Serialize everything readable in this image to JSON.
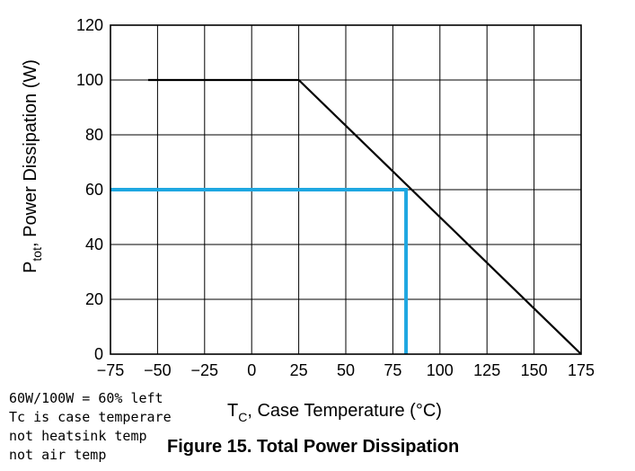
{
  "chart_data": {
    "type": "line",
    "title": "Figure 15. Total Power Dissipation",
    "xlabel": {
      "main": "T",
      "sub": "C",
      "rest": ", Case Temperature (°C)"
    },
    "ylabel": {
      "main": "P",
      "sub": "tot",
      "rest": ", Power Dissipation (W)"
    },
    "xlim": [
      -75,
      175
    ],
    "ylim": [
      0,
      120
    ],
    "xticks": [
      -75,
      -50,
      -25,
      0,
      25,
      50,
      75,
      100,
      125,
      150,
      175
    ],
    "xtick_labels": [
      "−75",
      "−50",
      "−25",
      "0",
      "25",
      "50",
      "75",
      "100",
      "125",
      "150",
      "175"
    ],
    "yticks": [
      0,
      20,
      40,
      60,
      80,
      100,
      120
    ],
    "ytick_labels": [
      "0",
      "20",
      "40",
      "60",
      "80",
      "100",
      "120"
    ],
    "grid": true,
    "series": [
      {
        "color": "#000000",
        "x": [
          -55,
          25,
          175
        ],
        "y": [
          100,
          100,
          0
        ]
      }
    ],
    "annotation_lines": [
      {
        "color": "#1ea7e1",
        "x": [
          -75,
          82,
          82
        ],
        "y": [
          60,
          60,
          0
        ]
      }
    ]
  },
  "handwritten_note": [
    "60W/100W = 60% left",
    "Tc is case temperare",
    "not heatsink temp",
    "not air temp"
  ]
}
